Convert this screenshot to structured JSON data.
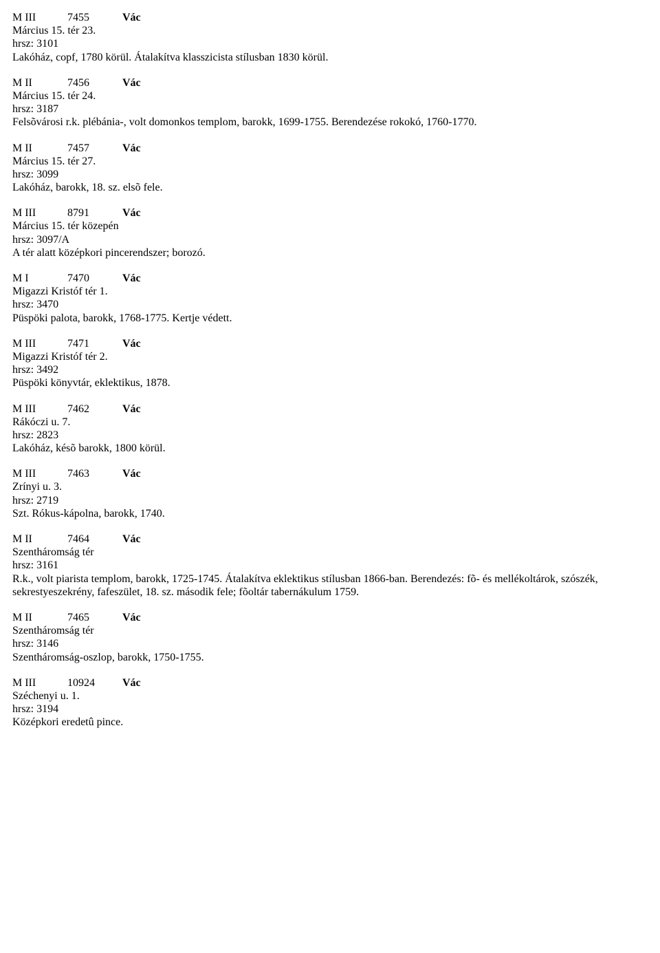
{
  "entries": [
    {
      "cat": "M III",
      "id": "7455",
      "city": "Vác",
      "lines": [
        "Március 15. tér 23.",
        "hrsz: 3101",
        "Lakóház, copf, 1780 körül. Átalakítva klasszicista stílusban 1830 körül."
      ]
    },
    {
      "cat": "M II",
      "id": "7456",
      "city": "Vác",
      "lines": [
        "Március 15. tér 24.",
        "hrsz: 3187",
        "Felsõvárosi r.k. plébánia-, volt domonkos templom, barokk, 1699-1755. Berendezése rokokó, 1760-1770."
      ]
    },
    {
      "cat": "M II",
      "id": "7457",
      "city": "Vác",
      "lines": [
        "Március 15. tér 27.",
        "hrsz: 3099",
        "Lakóház, barokk, 18. sz. elsõ fele."
      ]
    },
    {
      "cat": "M III",
      "id": "8791",
      "city": "Vác",
      "lines": [
        "Március 15. tér közepén",
        "hrsz: 3097/A",
        "A tér alatt középkori pincerendszer; borozó."
      ]
    },
    {
      "cat": "M I",
      "id": "7470",
      "city": "Vác",
      "lines": [
        "Migazzi Kristóf tér 1.",
        "hrsz: 3470",
        "Püspöki palota, barokk, 1768-1775. Kertje védett."
      ]
    },
    {
      "cat": "M III",
      "id": "7471",
      "city": "Vác",
      "lines": [
        "Migazzi Kristóf tér 2.",
        "hrsz: 3492",
        "Püspöki könyvtár, eklektikus, 1878."
      ]
    },
    {
      "cat": "M III",
      "id": "7462",
      "city": "Vác",
      "lines": [
        "Rákóczi u. 7.",
        "hrsz: 2823",
        "Lakóház, késõ barokk, 1800 körül."
      ]
    },
    {
      "cat": "M III",
      "id": "7463",
      "city": "Vác",
      "lines": [
        "Zrínyi u. 3.",
        "hrsz: 2719",
        "Szt. Rókus-kápolna, barokk, 1740."
      ]
    },
    {
      "cat": "M II",
      "id": "7464",
      "city": "Vác",
      "lines": [
        "Szentháromság tér",
        "hrsz: 3161",
        "R.k., volt piarista templom, barokk, 1725-1745. Átalakítva eklektikus stílusban 1866-ban. Berendezés: fõ- és mellékoltárok, szószék, sekrestyeszekrény, fafeszület, 18. sz. második fele; fõoltár tabernákulum 1759."
      ]
    },
    {
      "cat": "M II",
      "id": "7465",
      "city": "Vác",
      "lines": [
        "Szentháromság tér",
        "hrsz: 3146",
        "Szentháromság-oszlop, barokk, 1750-1755."
      ]
    },
    {
      "cat": "M III",
      "id": "10924",
      "city": "Vác",
      "lines": [
        "Széchenyi u. 1.",
        "hrsz: 3194",
        "Középkori eredetû pince."
      ]
    }
  ]
}
